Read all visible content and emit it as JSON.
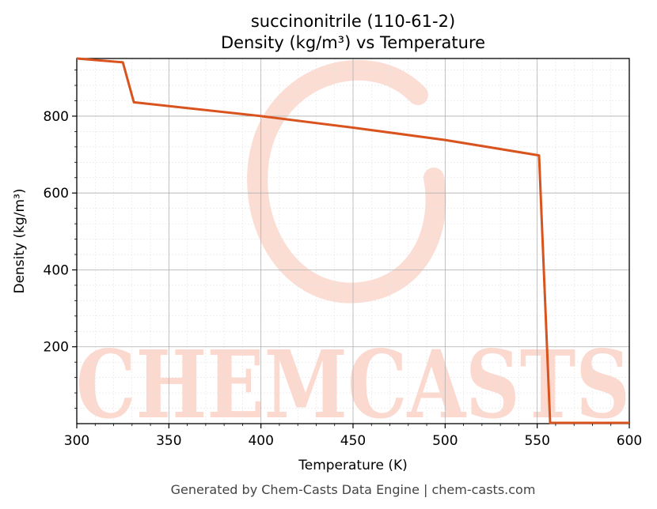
{
  "chart_data": {
    "type": "line",
    "title": "succinonitrile (110-61-2)",
    "subtitle": "Density (kg/m³) vs Temperature",
    "xlabel": "Temperature (K)",
    "ylabel": "Density (kg/m³)",
    "xlim": [
      300,
      600
    ],
    "ylim": [
      0,
      950
    ],
    "xticks": [
      300,
      350,
      400,
      450,
      500,
      550,
      600
    ],
    "yticks": [
      200,
      400,
      600,
      800
    ],
    "grid": true,
    "minor_grid": true,
    "series": [
      {
        "color": "#d9531e",
        "x": [
          300,
          325,
          331,
          400,
          450,
          500,
          551,
          557,
          600
        ],
        "y": [
          950,
          940,
          836,
          800,
          770,
          738,
          698,
          2,
          2
        ]
      }
    ]
  },
  "watermark": {
    "text": "CHEMCASTS",
    "color": "#fcd9cf"
  },
  "footer": "Generated by Chem-Casts Data Engine | chem-casts.com"
}
